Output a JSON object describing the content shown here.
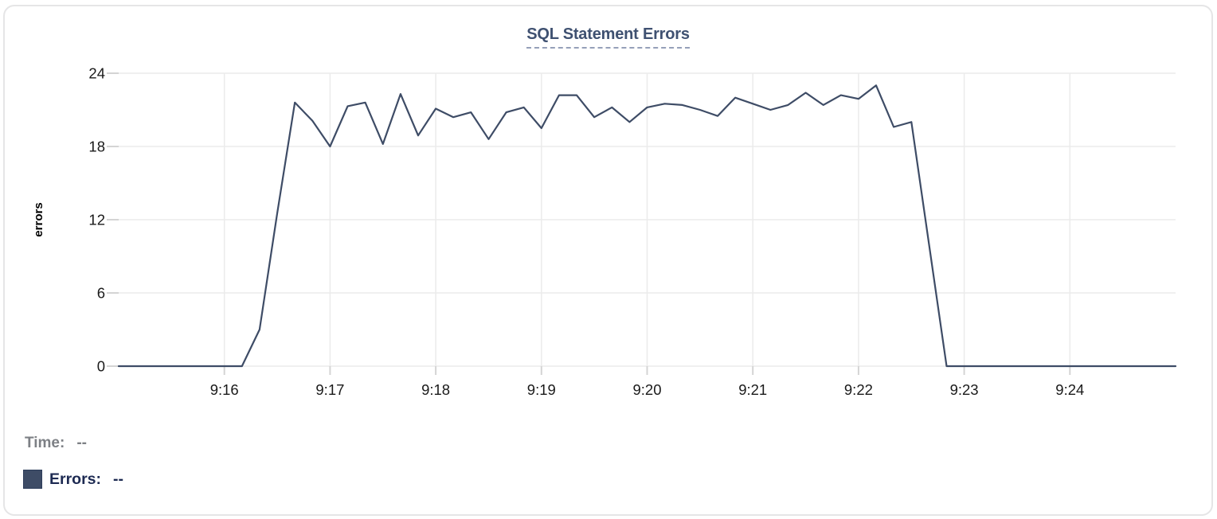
{
  "header": {
    "title": "SQL Statement Errors"
  },
  "legend": {
    "time_label": "Time:",
    "time_value": "--",
    "errors_label": "Errors:",
    "errors_value": "--"
  },
  "colors": {
    "series": "#3e4c66",
    "title": "#3f5171",
    "grid": "#ebebeb",
    "tick_mark": "#d4d4d4",
    "tick_text": "#1a1a1a",
    "time_text": "#7d8085",
    "errors_text": "#1d2a52",
    "card_border": "#e5e5e6"
  },
  "chart_data": {
    "type": "line",
    "title": "SQL Statement Errors",
    "xlabel": "",
    "ylabel": "errors",
    "series_name": "Errors",
    "ylim": [
      0,
      24
    ],
    "y_ticks": [
      0,
      6,
      12,
      18,
      24
    ],
    "x_tick_labels": [
      "9:16",
      "9:17",
      "9:18",
      "9:19",
      "9:20",
      "9:21",
      "9:22",
      "9:23",
      "9:24"
    ],
    "x_tick_seconds": [
      60,
      120,
      180,
      240,
      300,
      360,
      420,
      480,
      540
    ],
    "x_range_seconds": [
      0,
      600
    ],
    "grid": true,
    "legend_position": "bottom-left",
    "times": [
      "9:15:00",
      "9:15:10",
      "9:15:20",
      "9:15:30",
      "9:15:40",
      "9:15:50",
      "9:16:00",
      "9:16:10",
      "9:16:20",
      "9:16:30",
      "9:16:40",
      "9:16:50",
      "9:17:00",
      "9:17:10",
      "9:17:20",
      "9:17:30",
      "9:17:40",
      "9:17:50",
      "9:18:00",
      "9:18:10",
      "9:18:20",
      "9:18:30",
      "9:18:40",
      "9:18:50",
      "9:19:00",
      "9:19:10",
      "9:19:20",
      "9:19:30",
      "9:19:40",
      "9:19:50",
      "9:20:00",
      "9:20:10",
      "9:20:20",
      "9:20:30",
      "9:20:40",
      "9:20:50",
      "9:21:00",
      "9:21:10",
      "9:21:20",
      "9:21:30",
      "9:21:40",
      "9:21:50",
      "9:22:00",
      "9:22:10",
      "9:22:20",
      "9:22:30",
      "9:22:40",
      "9:22:50",
      "9:23:00",
      "9:23:10",
      "9:23:20",
      "9:23:30",
      "9:23:40",
      "9:23:50",
      "9:24:00",
      "9:24:10",
      "9:24:20",
      "9:24:30",
      "9:24:40",
      "9:24:50",
      "9:25:00"
    ],
    "values": [
      0,
      0,
      0,
      0,
      0,
      0,
      0,
      0,
      3,
      12.5,
      21.6,
      20.1,
      18,
      21.3,
      21.6,
      18.2,
      22.3,
      18.9,
      21.1,
      20.4,
      20.8,
      18.6,
      20.8,
      21.2,
      19.5,
      22.2,
      22.2,
      20.4,
      21.2,
      20,
      21.2,
      21.5,
      21.4,
      21,
      20.5,
      22,
      21.5,
      21,
      21.4,
      22.4,
      21.4,
      22.2,
      21.9,
      23,
      19.6,
      20,
      10,
      0,
      0,
      0,
      0,
      0,
      0,
      0,
      0,
      0,
      0,
      0,
      0,
      0,
      0
    ]
  }
}
